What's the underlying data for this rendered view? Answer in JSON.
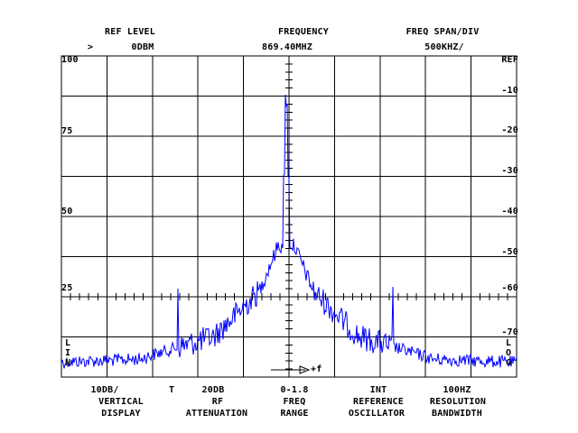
{
  "header": {
    "ref_level": {
      "title": "REF LEVEL",
      "marker": ">",
      "value": "0DBM"
    },
    "frequency": {
      "title": "FREQUENCY",
      "value": "869.40MHZ"
    },
    "span": {
      "title": "FREQ SPAN/DIV",
      "value": "500KHZ/"
    }
  },
  "display": {
    "left_scale": [
      "100",
      "75",
      "50",
      "25"
    ],
    "right_scale": [
      "REF",
      "-10",
      "-20",
      "-30",
      "-40",
      "-50",
      "-60",
      "-70"
    ],
    "lin_label": [
      "L",
      "I",
      "N"
    ],
    "log_label": [
      "L",
      "O",
      "G"
    ],
    "freq_arrow_label": "+f",
    "trace_color": "#0000ff",
    "grid_color": "#000000"
  },
  "footer": {
    "vertical": {
      "value": "10DB/",
      "line1": "VERTICAL",
      "line2": "DISPLAY"
    },
    "attenuation": {
      "flag": "T",
      "value": "20DB",
      "line1": "RF",
      "line2": "ATTENUATION"
    },
    "range": {
      "value": "0-1.8",
      "line1": "FREQ",
      "line2": "RANGE"
    },
    "reference": {
      "value": "INT",
      "line1": "REFERENCE",
      "line2": "OSCILLATOR"
    },
    "bandwidth": {
      "value": "100HZ",
      "line1": "RESOLUTION",
      "line2": "BANDWIDTH"
    }
  }
}
